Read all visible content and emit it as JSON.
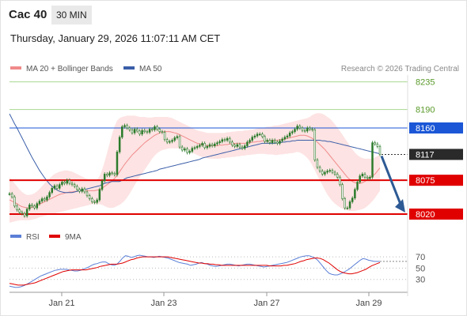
{
  "header": {
    "symbol": "Cac 40",
    "timeframe": "30 MIN",
    "datetime": "Thursday, January 29, 2026 11:07:11 AM CET"
  },
  "colors": {
    "candle": "#2a7a2a",
    "bollinger_fill": "#fde0e0",
    "ma20": "#f08a8a",
    "ma50": "#3a5ea8",
    "resistance_line": "#1a56d6",
    "support_line": "#e00000",
    "target_line": "#a8d890",
    "rsi": "#5b7fd6",
    "rsi_ma": "#e00000",
    "arrow": "#2d5a94",
    "current_badge": "#2a2a2a"
  },
  "chart_data": [
    {
      "type": "candlestick",
      "legend": {
        "position": "top-left",
        "items": [
          {
            "name": "MA 20 + Bollinger Bands",
            "color": "#f08a8a"
          },
          {
            "name": "MA 50",
            "color": "#3a5ea8"
          }
        ]
      },
      "watermark": "Research © 2026 Trading Central",
      "ylim": [
        8002,
        8246
      ],
      "x_tick_labels": [
        "Jan 21",
        "Jan 23",
        "Jan 27",
        "Jan 29"
      ],
      "levels": [
        {
          "label": "8235",
          "value": 8235,
          "kind": "target"
        },
        {
          "label": "8190",
          "value": 8190,
          "kind": "target"
        },
        {
          "label": "8160",
          "value": 8160,
          "kind": "resistance"
        },
        {
          "label": "8117",
          "value": 8117,
          "kind": "current"
        },
        {
          "label": "8075",
          "value": 8075,
          "kind": "support"
        },
        {
          "label": "8020",
          "value": 8020,
          "kind": "support"
        }
      ],
      "close": [
        8053,
        8048,
        8033,
        8027,
        8023,
        8021,
        8017,
        8028,
        8035,
        8033,
        8030,
        8037,
        8041,
        8045,
        8043,
        8048,
        8055,
        8062,
        8066,
        8062,
        8068,
        8072,
        8070,
        8075,
        8070,
        8068,
        8065,
        8060,
        8057,
        8061,
        8056,
        8050,
        8045,
        8040,
        8039,
        8043,
        8060,
        8074,
        8085,
        8083,
        8087,
        8086,
        8084,
        8121,
        8145,
        8162,
        8164,
        8160,
        8157,
        8152,
        8158,
        8155,
        8150,
        8156,
        8154,
        8153,
        8158,
        8157,
        8162,
        8158,
        8154,
        8153,
        8141,
        8137,
        8138,
        8140,
        8144,
        8146,
        8129,
        8124,
        8126,
        8120,
        8122,
        8127,
        8128,
        8130,
        8132,
        8135,
        8128,
        8130,
        8133,
        8131,
        8134,
        8136,
        8138,
        8141,
        8140,
        8143,
        8137,
        8132,
        8130,
        8133,
        8129,
        8127,
        8131,
        8137,
        8140,
        8145,
        8147,
        8150,
        8150,
        8146,
        8138,
        8140,
        8136,
        8140,
        8137,
        8135,
        8139,
        8142,
        8145,
        8147,
        8152,
        8154,
        8158,
        8163,
        8160,
        8156,
        8155,
        8160,
        8158,
        8157,
        8108,
        8096,
        8090,
        8085,
        8088,
        8090,
        8091,
        8088,
        8085,
        8080,
        8068,
        8045,
        8030,
        8030,
        8040,
        8046,
        8060,
        8072,
        8082,
        8085,
        8080,
        8078,
        8080,
        8136,
        8134,
        8130,
        8117
      ],
      "ma50": [
        8183,
        8175,
        8167,
        8160,
        8152,
        8144,
        8136,
        8128,
        8120,
        8112,
        8105,
        8098,
        8091,
        8085,
        8079,
        8074,
        8069,
        8065,
        8062,
        8059,
        8057,
        8056,
        8055,
        8055,
        8055,
        8055,
        8056,
        8057,
        8058,
        8059,
        8060,
        8061,
        8062,
        8063,
        8064,
        8065,
        8066,
        8068,
        8070,
        8071,
        8072,
        8073,
        8073,
        8073,
        8073,
        8075,
        8077,
        8079,
        8080,
        8081,
        8082,
        8083,
        8084,
        8085,
        8086,
        8087,
        8088,
        8089,
        8090,
        8091,
        8093,
        8094,
        8095,
        8096,
        8097,
        8098,
        8099,
        8100,
        8101,
        8102,
        8103,
        8104,
        8105,
        8106,
        8107,
        8108,
        8109,
        8111,
        8112,
        8113,
        8114,
        8115,
        8116,
        8117,
        8118,
        8119,
        8120,
        8121,
        8122,
        8123,
        8124,
        8125,
        8126,
        8127,
        8128,
        8129,
        8130,
        8131,
        8132,
        8133,
        8134,
        8135,
        8135,
        8135,
        8135,
        8135,
        8135,
        8136,
        8136,
        8137,
        8137,
        8138,
        8138,
        8139,
        8139,
        8140,
        8140,
        8140,
        8140,
        8140,
        8140,
        8140,
        8140,
        8140,
        8140,
        8139,
        8139,
        8138,
        8138,
        8137,
        8136,
        8135,
        8134,
        8133,
        8132,
        8131,
        8130,
        8129,
        8128,
        8127,
        8126,
        8125,
        8124,
        8123,
        8122,
        8121,
        8120,
        8119,
        8118
      ],
      "ma20": [
        8043,
        8041,
        8039,
        8037,
        8034,
        8032,
        8031,
        8030,
        8030,
        8031,
        8032,
        8034,
        8036,
        8038,
        8040,
        8042,
        8044,
        8046,
        8048,
        8050,
        8052,
        8053,
        8054,
        8055,
        8056,
        8056,
        8057,
        8057,
        8058,
        8058,
        8058,
        8058,
        8058,
        8058,
        8058,
        8059,
        8060,
        8062,
        8065,
        8068,
        8071,
        8074,
        8078,
        8083,
        8089,
        8095,
        8101,
        8106,
        8111,
        8116,
        8120,
        8124,
        8128,
        8132,
        8136,
        8139,
        8142,
        8145,
        8148,
        8150,
        8152,
        8153,
        8154,
        8154,
        8154,
        8153,
        8152,
        8151,
        8149,
        8147,
        8145,
        8143,
        8141,
        8139,
        8137,
        8135,
        8134,
        8133,
        8132,
        8131,
        8131,
        8131,
        8131,
        8131,
        8132,
        8132,
        8133,
        8133,
        8134,
        8134,
        8135,
        8135,
        8135,
        8135,
        8135,
        8136,
        8136,
        8137,
        8137,
        8138,
        8138,
        8139,
        8139,
        8139,
        8139,
        8140,
        8140,
        8140,
        8141,
        8141,
        8142,
        8143,
        8144,
        8145,
        8146,
        8147,
        8148,
        8148,
        8148,
        8147,
        8145,
        8143,
        8140,
        8137,
        8133,
        8129,
        8125,
        8120,
        8115,
        8110,
        8105,
        8100,
        8095,
        8090,
        8085,
        8080,
        8076,
        8073,
        8071,
        8070,
        8070,
        8071,
        8073,
        8076,
        8079,
        8082,
        8085,
        8090,
        8095
      ],
      "bb_upper": [
        8080,
        8075,
        8070,
        8065,
        8060,
        8056,
        8053,
        8051,
        8051,
        8052,
        8054,
        8057,
        8061,
        8065,
        8070,
        8074,
        8078,
        8082,
        8085,
        8087,
        8089,
        8090,
        8091,
        8091,
        8090,
        8089,
        8087,
        8085,
        8083,
        8081,
        8079,
        8077,
        8075,
        8074,
        8074,
        8076,
        8082,
        8092,
        8105,
        8120,
        8135,
        8150,
        8163,
        8172,
        8176,
        8178,
        8179,
        8180,
        8180,
        8180,
        8180,
        8179,
        8178,
        8178,
        8178,
        8177,
        8177,
        8177,
        8178,
        8178,
        8178,
        8178,
        8178,
        8178,
        8177,
        8176,
        8174,
        8172,
        8170,
        8168,
        8166,
        8164,
        8162,
        8160,
        8158,
        8156,
        8155,
        8154,
        8153,
        8152,
        8152,
        8152,
        8152,
        8152,
        8152,
        8152,
        8152,
        8153,
        8153,
        8154,
        8154,
        8155,
        8155,
        8155,
        8156,
        8156,
        8157,
        8157,
        8158,
        8159,
        8160,
        8160,
        8161,
        8162,
        8162,
        8163,
        8164,
        8164,
        8165,
        8166,
        8167,
        8168,
        8169,
        8170,
        8171,
        8172,
        8173,
        8174,
        8175,
        8176,
        8178,
        8181,
        8183,
        8184,
        8184,
        8183,
        8181,
        8178,
        8175,
        8171,
        8166,
        8161,
        8155,
        8149,
        8143,
        8137,
        8131,
        8125,
        8120,
        8116,
        8113,
        8111,
        8110,
        8110,
        8110,
        8110,
        8112,
        8114,
        8117
      ],
      "bb_lower": [
        8006,
        8007,
        8008,
        8009,
        8010,
        8010,
        8010,
        8010,
        8010,
        8011,
        8012,
        8013,
        8015,
        8016,
        8017,
        8018,
        8019,
        8020,
        8021,
        8022,
        8023,
        8024,
        8025,
        8026,
        8027,
        8028,
        8029,
        8030,
        8031,
        8032,
        8033,
        8034,
        8035,
        8036,
        8036,
        8036,
        8036,
        8035,
        8033,
        8031,
        8030,
        8030,
        8031,
        8033,
        8035,
        8038,
        8042,
        8047,
        8053,
        8060,
        8067,
        8074,
        8080,
        8086,
        8092,
        8098,
        8104,
        8110,
        8115,
        8119,
        8122,
        8124,
        8125,
        8126,
        8127,
        8127,
        8127,
        8127,
        8126,
        8125,
        8124,
        8123,
        8122,
        8120,
        8118,
        8116,
        8114,
        8113,
        8112,
        8111,
        8110,
        8110,
        8110,
        8110,
        8110,
        8111,
        8111,
        8112,
        8112,
        8113,
        8113,
        8114,
        8114,
        8115,
        8115,
        8116,
        8116,
        8117,
        8117,
        8118,
        8118,
        8118,
        8118,
        8117,
        8117,
        8117,
        8116,
        8116,
        8117,
        8117,
        8118,
        8118,
        8119,
        8119,
        8120,
        8121,
        8120,
        8118,
        8115,
        8111,
        8106,
        8099,
        8091,
        8083,
        8075,
        8067,
        8059,
        8052,
        8046,
        8041,
        8037,
        8034,
        8031,
        8029,
        8027,
        8026,
        8025,
        8025,
        8025,
        8026,
        8027,
        8028,
        8030,
        8033,
        8037,
        8041,
        8046,
        8052,
        8058
      ]
    },
    {
      "type": "line",
      "legend": {
        "position": "top-left",
        "items": [
          {
            "name": "RSI",
            "color": "#5b7fd6"
          },
          {
            "name": "9MA",
            "color": "#e00000"
          }
        ]
      },
      "ylim": [
        10,
        80
      ],
      "y_tick_labels": [
        "70",
        "50",
        "30"
      ],
      "y_ticks": [
        70,
        50,
        30
      ],
      "series": [
        {
          "name": "RSI",
          "values": [
            18,
            17,
            16,
            16,
            17,
            19,
            21,
            24,
            27,
            30,
            33,
            36,
            38,
            40,
            42,
            44,
            46,
            47,
            48,
            48,
            48,
            47,
            46,
            45,
            45,
            46,
            48,
            50,
            52,
            55,
            57,
            58,
            60,
            61,
            61,
            58,
            56,
            55,
            57,
            62,
            68,
            72,
            71,
            69,
            70,
            72,
            73,
            72,
            71,
            70,
            70,
            69,
            70,
            71,
            70,
            69,
            68,
            66,
            64,
            62,
            60,
            59,
            58,
            57,
            55,
            56,
            57,
            59,
            60,
            58,
            57,
            55,
            54,
            53,
            54,
            55,
            56,
            57,
            57,
            56,
            55,
            54,
            55,
            56,
            57,
            57,
            56,
            55,
            54,
            53,
            52,
            53,
            54,
            55,
            56,
            57,
            58,
            59,
            60,
            62,
            64,
            66,
            68,
            70,
            71,
            72,
            72,
            70,
            68,
            64,
            58,
            52,
            46,
            41,
            39,
            38,
            38,
            40,
            42,
            45,
            48,
            52,
            56,
            60,
            64,
            67,
            66,
            64,
            63,
            62,
            62,
            62
          ],
          "color": "#5b7fd6"
        },
        {
          "name": "9MA",
          "values": [
            23,
            22,
            21,
            20,
            20,
            20,
            21,
            22,
            23,
            24,
            26,
            28,
            30,
            32,
            34,
            36,
            38,
            40,
            42,
            44,
            45,
            46,
            47,
            47,
            47,
            47,
            47,
            47,
            48,
            49,
            50,
            51,
            53,
            54,
            55,
            56,
            57,
            57,
            57,
            58,
            59,
            61,
            63,
            65,
            66,
            68,
            69,
            70,
            70,
            70,
            70,
            70,
            70,
            70,
            70,
            70,
            70,
            69,
            68,
            67,
            66,
            65,
            64,
            63,
            62,
            61,
            60,
            59,
            59,
            58,
            58,
            57,
            57,
            56,
            56,
            55,
            55,
            55,
            55,
            55,
            55,
            55,
            55,
            55,
            55,
            55,
            55,
            55,
            55,
            55,
            55,
            55,
            54,
            54,
            54,
            54,
            54,
            55,
            55,
            56,
            57,
            58,
            60,
            62,
            63,
            65,
            66,
            67,
            68,
            68,
            67,
            65,
            62,
            59,
            55,
            51,
            47,
            44,
            42,
            41,
            40,
            40,
            41,
            42,
            44,
            46,
            48,
            51,
            54,
            56,
            58,
            60
          ],
          "color": "#e00000"
        }
      ]
    }
  ]
}
